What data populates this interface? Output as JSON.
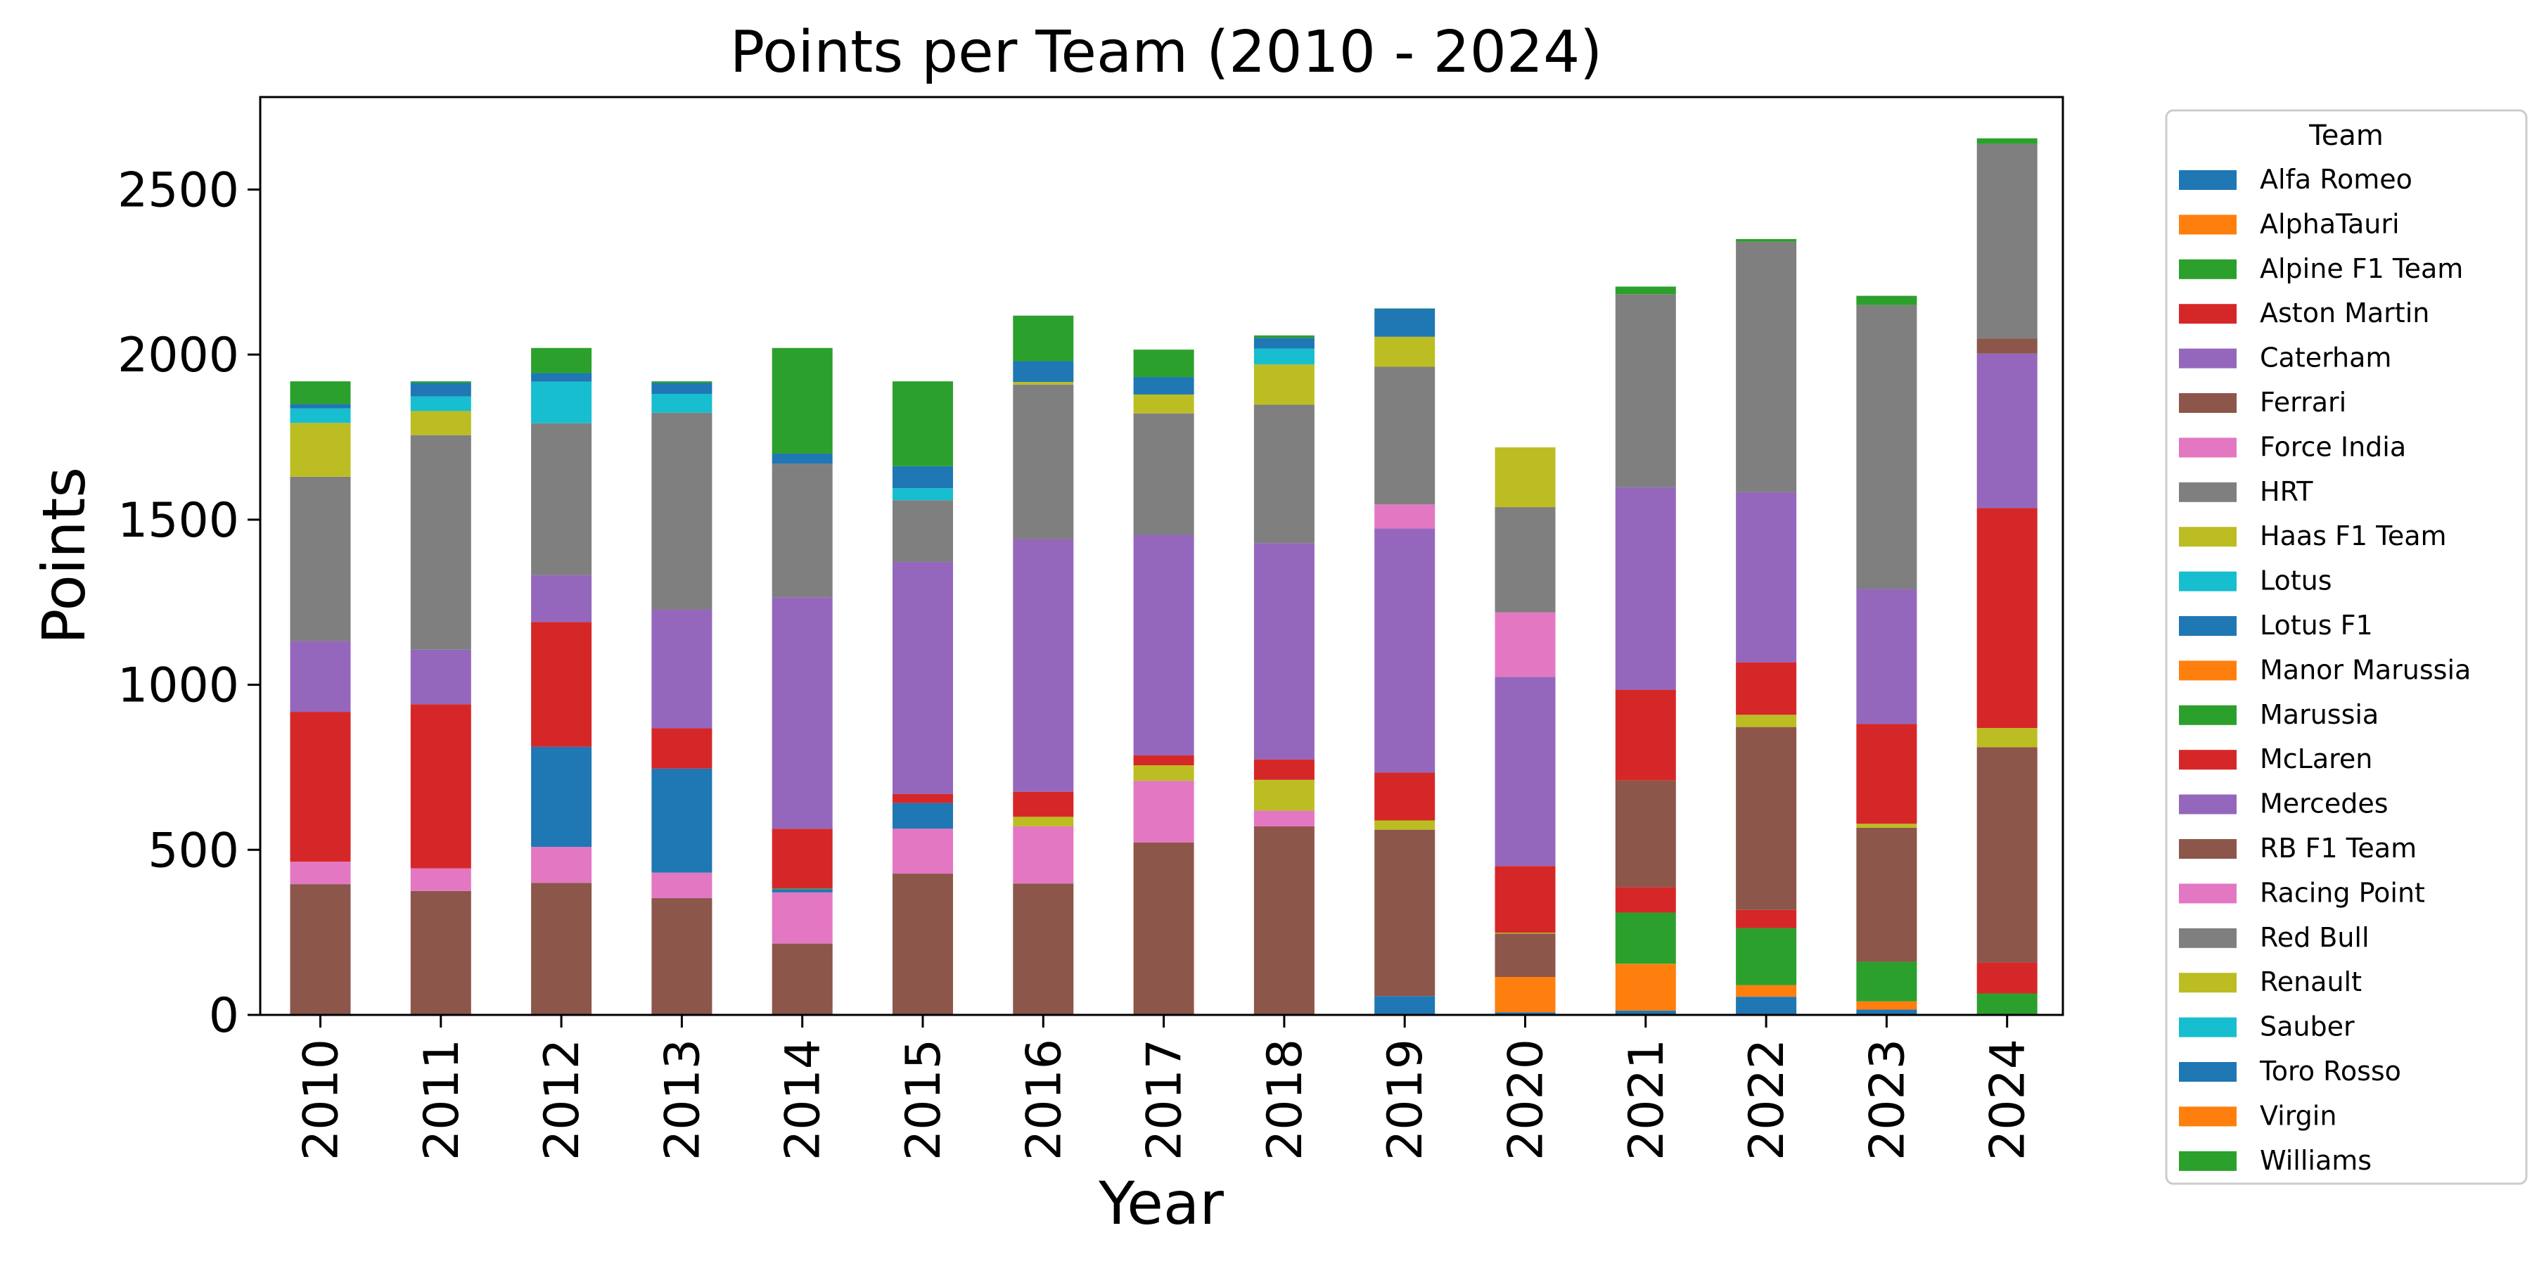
{
  "chart_data": {
    "type": "bar",
    "stacked": true,
    "title": "Points per Team (2010 - 2024)",
    "xlabel": "Year",
    "ylabel": "Points",
    "ylim": [
      0,
      2780
    ],
    "yticks": [
      0,
      500,
      1000,
      1500,
      2000,
      2500
    ],
    "grid": false,
    "legend_position": "outside-right",
    "legend_title": "Team",
    "categories": [
      "2010",
      "2011",
      "2012",
      "2013",
      "2014",
      "2015",
      "2016",
      "2017",
      "2018",
      "2019",
      "2020",
      "2021",
      "2022",
      "2023",
      "2024"
    ],
    "series": [
      {
        "name": "Alfa Romeo",
        "color": "#1f77b4",
        "values": [
          0,
          0,
          0,
          0,
          0,
          0,
          0,
          0,
          0,
          57,
          8,
          13,
          55,
          16,
          0
        ]
      },
      {
        "name": "AlphaTauri",
        "color": "#ff7f0e",
        "values": [
          0,
          0,
          0,
          0,
          0,
          0,
          0,
          0,
          0,
          0,
          107,
          142,
          35,
          25,
          0
        ]
      },
      {
        "name": "Alpine F1 Team",
        "color": "#2ca02c",
        "values": [
          0,
          0,
          0,
          0,
          0,
          0,
          0,
          0,
          0,
          0,
          0,
          155,
          173,
          120,
          65
        ]
      },
      {
        "name": "Aston Martin",
        "color": "#d62728",
        "values": [
          0,
          0,
          0,
          0,
          0,
          0,
          0,
          0,
          0,
          0,
          0,
          77,
          55,
          0,
          94
        ]
      },
      {
        "name": "Caterham",
        "color": "#9467bd",
        "values": [
          0,
          0,
          0,
          0,
          0,
          0,
          0,
          0,
          0,
          0,
          0,
          0,
          0,
          0,
          0
        ]
      },
      {
        "name": "Ferrari",
        "color": "#8c564b",
        "values": [
          396,
          375,
          400,
          354,
          216,
          428,
          398,
          522,
          571,
          504,
          131,
          323,
          554,
          406,
          652
        ]
      },
      {
        "name": "Force India",
        "color": "#e377c2",
        "values": [
          68,
          69,
          109,
          77,
          155,
          136,
          173,
          187,
          48,
          0,
          0,
          0,
          0,
          0,
          0
        ]
      },
      {
        "name": "HRT",
        "color": "#7f7f7f",
        "values": [
          0,
          0,
          0,
          0,
          0,
          0,
          0,
          0,
          0,
          0,
          0,
          0,
          0,
          0,
          0
        ]
      },
      {
        "name": "Haas F1 Team",
        "color": "#bcbd22",
        "values": [
          0,
          0,
          0,
          0,
          0,
          0,
          29,
          47,
          93,
          28,
          3,
          0,
          37,
          12,
          58
        ]
      },
      {
        "name": "Lotus",
        "color": "#17becf",
        "values": [
          0,
          0,
          0,
          0,
          0,
          0,
          0,
          0,
          0,
          0,
          0,
          0,
          0,
          0,
          0
        ]
      },
      {
        "name": "Lotus F1",
        "color": "#1f77b4",
        "values": [
          0,
          0,
          303,
          315,
          10,
          78,
          0,
          0,
          0,
          0,
          0,
          0,
          0,
          0,
          0
        ]
      },
      {
        "name": "Manor Marussia",
        "color": "#ff7f0e",
        "values": [
          0,
          0,
          0,
          0,
          0,
          0,
          0,
          0,
          0,
          0,
          0,
          0,
          0,
          0,
          0
        ]
      },
      {
        "name": "Marussia",
        "color": "#2ca02c",
        "values": [
          0,
          0,
          0,
          0,
          2,
          0,
          0,
          0,
          0,
          0,
          0,
          0,
          0,
          0,
          0
        ]
      },
      {
        "name": "McLaren",
        "color": "#d62728",
        "values": [
          454,
          497,
          378,
          122,
          181,
          27,
          76,
          30,
          62,
          145,
          202,
          275,
          159,
          302,
          666
        ]
      },
      {
        "name": "Mercedes",
        "color": "#9467bd",
        "values": [
          214,
          165,
          142,
          360,
          701,
          703,
          765,
          668,
          655,
          739,
          573,
          613,
          515,
          409,
          468
        ]
      },
      {
        "name": "RB F1 Team",
        "color": "#8c564b",
        "values": [
          0,
          0,
          0,
          0,
          0,
          0,
          0,
          0,
          0,
          0,
          0,
          0,
          0,
          0,
          46
        ]
      },
      {
        "name": "Racing Point",
        "color": "#e377c2",
        "values": [
          0,
          0,
          0,
          0,
          0,
          0,
          0,
          0,
          0,
          73,
          195,
          0,
          0,
          0,
          0
        ]
      },
      {
        "name": "Red Bull",
        "color": "#7f7f7f",
        "values": [
          498,
          650,
          460,
          596,
          405,
          187,
          468,
          368,
          419,
          417,
          319,
          585,
          759,
          860,
          589
        ]
      },
      {
        "name": "Renault",
        "color": "#bcbd22",
        "values": [
          163,
          73,
          0,
          0,
          0,
          0,
          8,
          57,
          122,
          91,
          181,
          0,
          0,
          0,
          0
        ]
      },
      {
        "name": "Sauber",
        "color": "#17becf",
        "values": [
          44,
          44,
          126,
          57,
          0,
          36,
          0,
          0,
          48,
          0,
          0,
          0,
          0,
          0,
          0
        ]
      },
      {
        "name": "Toro Rosso",
        "color": "#1f77b4",
        "values": [
          13,
          41,
          26,
          33,
          30,
          67,
          63,
          53,
          33,
          85,
          0,
          0,
          0,
          0,
          0
        ]
      },
      {
        "name": "Virgin",
        "color": "#ff7f0e",
        "values": [
          0,
          0,
          0,
          0,
          0,
          0,
          0,
          0,
          0,
          0,
          0,
          0,
          0,
          0,
          0
        ]
      },
      {
        "name": "Williams",
        "color": "#2ca02c",
        "values": [
          69,
          5,
          76,
          5,
          320,
          257,
          138,
          83,
          7,
          1,
          0,
          23,
          8,
          28,
          17
        ]
      }
    ]
  }
}
